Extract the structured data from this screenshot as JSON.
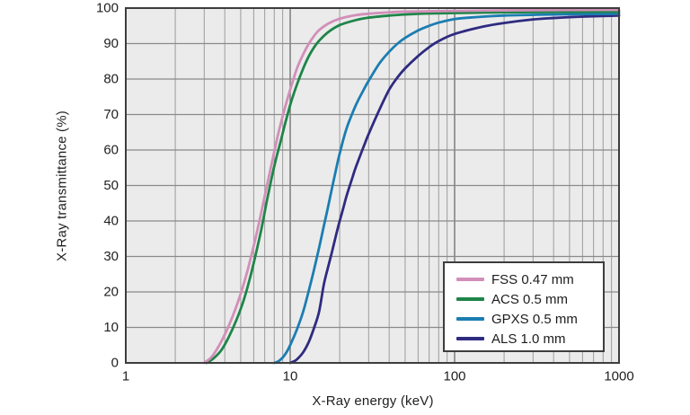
{
  "chart_data": {
    "type": "line",
    "title": "",
    "xlabel": "X-Ray energy (keV)",
    "ylabel": "X-Ray transmittance (%)",
    "x_scale": "log",
    "xlim": [
      1,
      1000
    ],
    "ylim": [
      0,
      100
    ],
    "x_ticks": [
      1,
      10,
      100,
      1000
    ],
    "y_ticks": [
      0,
      10,
      20,
      30,
      40,
      50,
      60,
      70,
      80,
      90,
      100
    ],
    "grid": {
      "x_minor_log": true,
      "x_major": true,
      "y_major": true
    },
    "legend_position": "inside-lower-right",
    "plot_background": "#ebebeb",
    "grid_minor_color": "#9c9c9c",
    "grid_major_color": "#757575",
    "frame_color": "#3d3d3d",
    "text_color": "#1f1f1f",
    "series": [
      {
        "name": "FSS 0.47 mm",
        "color": "#d28fb8",
        "points": [
          [
            3,
            0
          ],
          [
            3.3,
            1.5
          ],
          [
            3.6,
            4
          ],
          [
            4,
            8
          ],
          [
            4.5,
            13.5
          ],
          [
            5,
            19.5
          ],
          [
            5.5,
            26
          ],
          [
            6,
            33
          ],
          [
            6.5,
            40
          ],
          [
            7,
            47
          ],
          [
            7.5,
            53.5
          ],
          [
            8,
            59.5
          ],
          [
            8.5,
            65
          ],
          [
            9,
            69.5
          ],
          [
            9.5,
            73.5
          ],
          [
            10,
            77
          ],
          [
            11,
            83
          ],
          [
            12,
            87
          ],
          [
            13,
            90
          ],
          [
            14,
            92.2
          ],
          [
            15,
            93.8
          ],
          [
            17,
            95.6
          ],
          [
            20,
            97
          ],
          [
            25,
            98
          ],
          [
            30,
            98.4
          ],
          [
            40,
            98.8
          ],
          [
            50,
            99
          ],
          [
            70,
            99.1
          ],
          [
            100,
            99.2
          ],
          [
            200,
            99.35
          ],
          [
            400,
            99.45
          ],
          [
            1000,
            99.5
          ]
        ]
      },
      {
        "name": "ACS 0.5 mm",
        "color": "#1f8549",
        "points": [
          [
            3.1,
            0
          ],
          [
            3.4,
            1.2
          ],
          [
            3.8,
            3.5
          ],
          [
            4.2,
            7
          ],
          [
            4.7,
            12
          ],
          [
            5.2,
            17.5
          ],
          [
            5.7,
            24
          ],
          [
            6.2,
            31
          ],
          [
            6.7,
            38
          ],
          [
            7.2,
            45.5
          ],
          [
            7.7,
            52
          ],
          [
            8.2,
            57.5
          ],
          [
            8.7,
            62
          ],
          [
            9.2,
            66.5
          ],
          [
            9.7,
            70.5
          ],
          [
            10.2,
            74
          ],
          [
            11,
            78.5
          ],
          [
            12,
            83
          ],
          [
            13,
            86.5
          ],
          [
            14,
            89
          ],
          [
            15,
            90.8
          ],
          [
            17,
            93.2
          ],
          [
            20,
            95.2
          ],
          [
            25,
            96.6
          ],
          [
            30,
            97.3
          ],
          [
            40,
            97.9
          ],
          [
            50,
            98.2
          ],
          [
            70,
            98.5
          ],
          [
            100,
            98.6
          ],
          [
            200,
            98.8
          ],
          [
            400,
            98.9
          ],
          [
            1000,
            99
          ]
        ]
      },
      {
        "name": "GPXS 0.5 mm",
        "color": "#1b7db2",
        "points": [
          [
            8,
            0
          ],
          [
            8.5,
            0.5
          ],
          [
            9,
            1.5
          ],
          [
            9.5,
            3
          ],
          [
            10,
            5
          ],
          [
            11,
            9.5
          ],
          [
            12,
            14.5
          ],
          [
            13,
            20.5
          ],
          [
            14,
            26.5
          ],
          [
            15,
            32.5
          ],
          [
            16,
            38.5
          ],
          [
            17,
            44
          ],
          [
            18,
            49.5
          ],
          [
            19,
            54.5
          ],
          [
            20,
            59
          ],
          [
            22,
            66
          ],
          [
            25,
            72.5
          ],
          [
            28,
            77
          ],
          [
            30,
            79.5
          ],
          [
            35,
            84.5
          ],
          [
            40,
            87.7
          ],
          [
            45,
            90
          ],
          [
            50,
            91.6
          ],
          [
            60,
            93.7
          ],
          [
            70,
            95
          ],
          [
            80,
            95.9
          ],
          [
            100,
            96.9
          ],
          [
            130,
            97.4
          ],
          [
            200,
            97.9
          ],
          [
            400,
            98.2
          ],
          [
            1000,
            98.4
          ]
        ]
      },
      {
        "name": "ALS 1.0 mm",
        "color": "#2f2b80",
        "points": [
          [
            10,
            0
          ],
          [
            10.5,
            0.4
          ],
          [
            11,
            1
          ],
          [
            12,
            3
          ],
          [
            13,
            6
          ],
          [
            14,
            10
          ],
          [
            15,
            14.5
          ],
          [
            16,
            22
          ],
          [
            17,
            27
          ],
          [
            18,
            31.5
          ],
          [
            19,
            36
          ],
          [
            20,
            40
          ],
          [
            21,
            43.5
          ],
          [
            22,
            47
          ],
          [
            24,
            52.5
          ],
          [
            25,
            55
          ],
          [
            28,
            61
          ],
          [
            30,
            64.5
          ],
          [
            35,
            71.5
          ],
          [
            40,
            77
          ],
          [
            45,
            80.5
          ],
          [
            50,
            83
          ],
          [
            60,
            86.5
          ],
          [
            70,
            89
          ],
          [
            80,
            90.7
          ],
          [
            100,
            92.7
          ],
          [
            150,
            94.8
          ],
          [
            200,
            95.8
          ],
          [
            300,
            96.8
          ],
          [
            400,
            97.2
          ],
          [
            600,
            97.6
          ],
          [
            1000,
            97.9
          ]
        ]
      }
    ]
  }
}
